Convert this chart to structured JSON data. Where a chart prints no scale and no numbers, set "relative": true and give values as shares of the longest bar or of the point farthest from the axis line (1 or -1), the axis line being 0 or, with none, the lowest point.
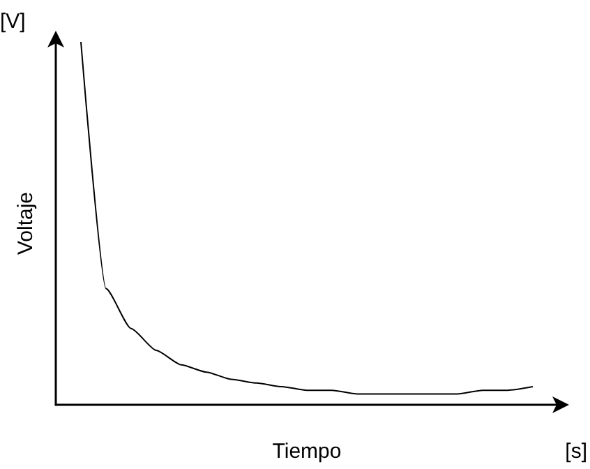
{
  "chart_data": {
    "type": "line",
    "relative": true,
    "xlabel": "Tiempo",
    "ylabel": "Voltaje",
    "annotations": [
      "[V]",
      "[s]"
    ],
    "categories": [
      null,
      null,
      null,
      null,
      null,
      null,
      null,
      null,
      null,
      null,
      null,
      null,
      null,
      null,
      null,
      null,
      null,
      null,
      null,
      null,
      null
    ],
    "series": [
      {
        "color": "#000000",
        "values": [
          null,
          1.0,
          0.32,
          0.21,
          0.15,
          0.11,
          0.09,
          0.07,
          0.06,
          0.05,
          0.04,
          0.04,
          0.03,
          0.03,
          0.03,
          0.03,
          0.03,
          0.04,
          0.04,
          0.05,
          null
        ]
      }
    ],
    "grid": false,
    "marker": "none",
    "line_style": "solid"
  }
}
